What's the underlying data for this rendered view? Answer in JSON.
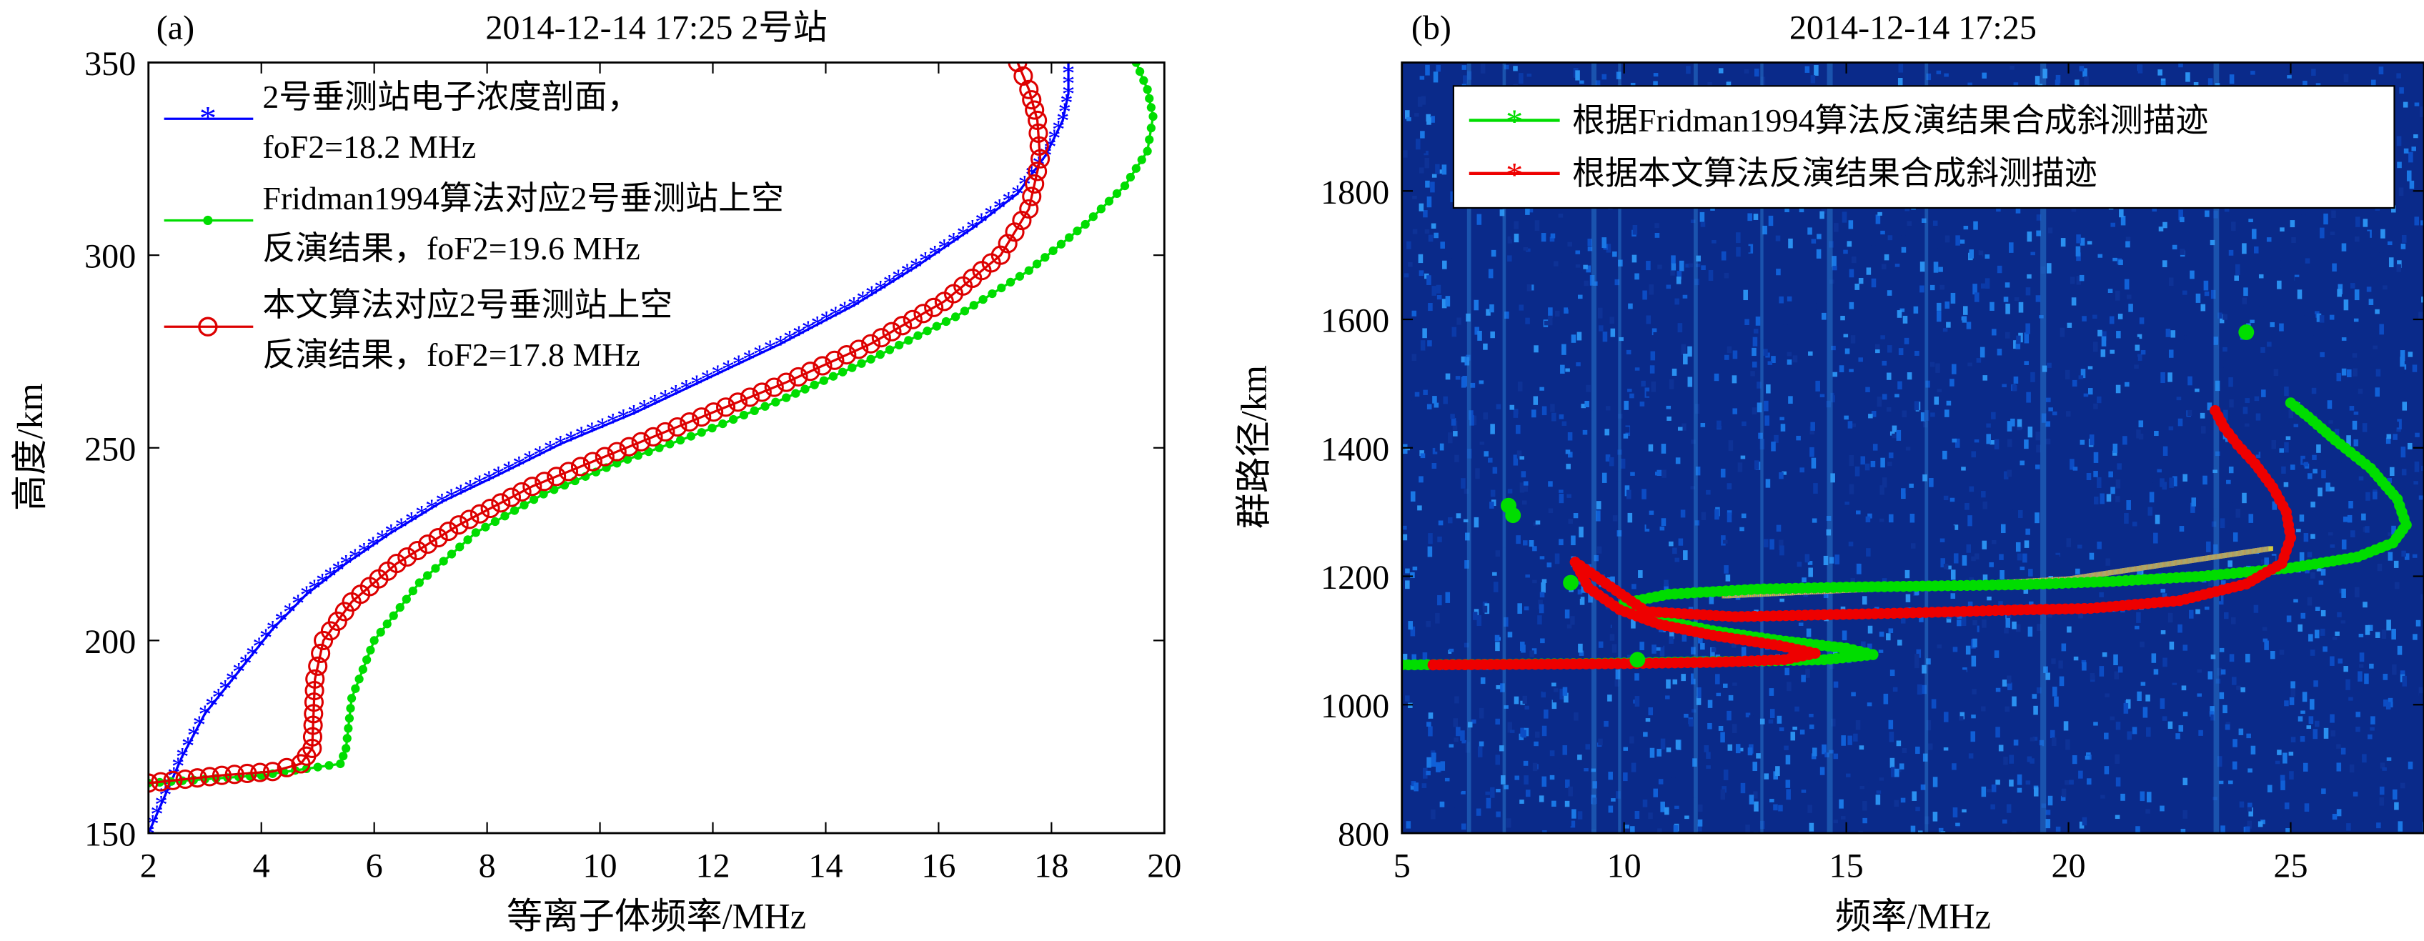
{
  "chart_data": [
    {
      "id": "a",
      "type": "line",
      "panel_label": "(a)",
      "title": "2014-12-14 17:25  2号站",
      "xlabel": "等离子体频率/MHz",
      "ylabel": "高度/km",
      "xlim": [
        2,
        20
      ],
      "ylim": [
        150,
        350
      ],
      "xticks": [
        "2",
        "4",
        "6",
        "8",
        "10",
        "12",
        "14",
        "16",
        "18",
        "20"
      ],
      "yticks": [
        "150",
        "200",
        "250",
        "300",
        "350"
      ],
      "legend_position": "top-left",
      "series": [
        {
          "name": "2号垂测站电子浓度剖面，",
          "name_line2": "foF2=18.2 MHz",
          "color": "#0000ff",
          "marker": "star",
          "x": [
            2.0,
            2.3,
            2.6,
            3.0,
            3.6,
            4.2,
            4.8,
            5.5,
            6.3,
            7.2,
            8.2,
            9.3,
            10.6,
            11.9,
            13.2,
            14.5,
            15.6,
            16.6,
            17.4,
            17.9,
            18.2,
            18.3,
            18.3
          ],
          "y": [
            150,
            160,
            170,
            181,
            192,
            203,
            212,
            220,
            228,
            236,
            243,
            251,
            259,
            268,
            277,
            287,
            297,
            307,
            316,
            326,
            335,
            342,
            350
          ]
        },
        {
          "name": "Fridman1994算法对应2号垂测站上空",
          "name_line2": "反演结果，foF2=19.6 MHz",
          "color": "#00dd00",
          "marker": "dot",
          "x": [
            2.0,
            4.0,
            5.4,
            5.5,
            5.6,
            6.0,
            6.8,
            7.8,
            9.0,
            10.3,
            11.8,
            13.3,
            14.8,
            16.3,
            17.6,
            18.6,
            19.3,
            19.7,
            19.8,
            19.7,
            19.5
          ],
          "y": [
            163,
            165,
            168,
            172,
            185,
            200,
            215,
            228,
            238,
            246,
            254,
            263,
            273,
            284,
            296,
            308,
            318,
            327,
            336,
            343,
            350
          ]
        },
        {
          "name": "本文算法对应2号垂测站上空",
          "name_line2": "反演结果，foF2=17.8 MHz",
          "color": "#dd0000",
          "marker": "circle",
          "x": [
            2.0,
            3.3,
            4.2,
            4.7,
            4.9,
            4.95,
            5.1,
            5.6,
            6.4,
            7.5,
            8.8,
            10.3,
            11.8,
            13.3,
            14.8,
            16.1,
            17.1,
            17.6,
            17.8,
            17.75,
            17.6,
            17.4
          ],
          "y": [
            163,
            165,
            166,
            168,
            172,
            190,
            200,
            210,
            220,
            230,
            240,
            249,
            258,
            267,
            277,
            288,
            300,
            312,
            325,
            335,
            343,
            350
          ]
        }
      ]
    },
    {
      "id": "b",
      "type": "line",
      "panel_label": "(b)",
      "title": "2014-12-14 17:25",
      "xlabel": "频率/MHz",
      "ylabel": "群路径/km",
      "xlim": [
        5,
        28
      ],
      "ylim": [
        800,
        2000
      ],
      "xticks": [
        "5",
        "10",
        "15",
        "20",
        "25"
      ],
      "yticks": [
        "800",
        "1000",
        "1200",
        "1400",
        "1600",
        "1800"
      ],
      "legend_position": "top-right",
      "background": "ionogram",
      "series": [
        {
          "name": "根据Fridman1994算法反演结果合成斜测描迹",
          "color": "#00dd00",
          "marker": "star",
          "x": [
            5.0,
            7.0,
            9.0,
            11.0,
            13.0,
            14.5,
            15.6,
            15.0,
            13.5,
            12.0,
            10.6,
            10.0,
            11.0,
            13.0,
            15.0,
            17.0,
            19.0,
            21.0,
            23.0,
            25.0,
            26.5,
            27.3,
            27.6,
            27.4,
            26.8,
            26.0,
            25.4,
            25.0
          ],
          "y": [
            1062,
            1063,
            1064,
            1066,
            1068,
            1070,
            1078,
            1088,
            1100,
            1115,
            1135,
            1158,
            1172,
            1180,
            1183,
            1185,
            1187,
            1192,
            1200,
            1213,
            1230,
            1252,
            1280,
            1320,
            1368,
            1412,
            1448,
            1470
          ]
        },
        {
          "name": "根据本文算法反演结果合成斜测描迹",
          "color": "#ee0000",
          "marker": "star",
          "x": [
            5.7,
            8.0,
            10.0,
            12.0,
            13.6,
            14.3,
            13.5,
            12.0,
            10.8,
            9.9,
            9.2,
            8.9,
            10.5,
            12.5,
            14.5,
            16.5,
            18.5,
            20.5,
            22.5,
            24.0,
            24.8,
            25.0,
            24.9,
            24.6,
            24.2,
            23.8,
            23.5,
            23.3
          ],
          "y": [
            1062,
            1063,
            1064,
            1066,
            1070,
            1080,
            1092,
            1108,
            1125,
            1148,
            1182,
            1222,
            1145,
            1137,
            1140,
            1143,
            1147,
            1150,
            1162,
            1188,
            1220,
            1260,
            1300,
            1338,
            1375,
            1405,
            1432,
            1458
          ]
        }
      ]
    }
  ]
}
